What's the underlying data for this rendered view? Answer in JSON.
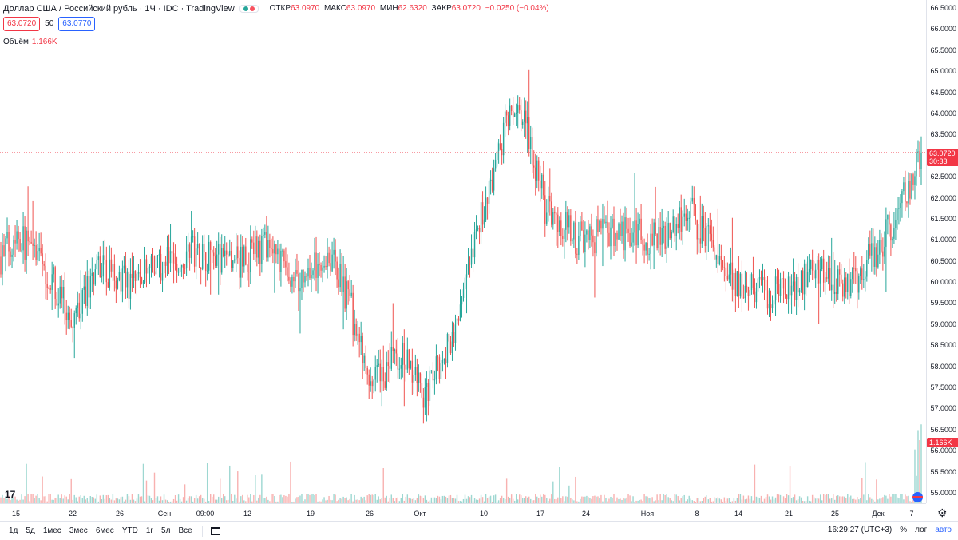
{
  "header": {
    "title": "Доллар США / Российский рубль · 1Ч · IDC · TradingView",
    "ohlc": {
      "open_label": "ОТКР",
      "open": "63.0970",
      "high_label": "МАКС",
      "high": "63.0970",
      "low_label": "МИН",
      "low": "62.6320",
      "close_label": "ЗАКР",
      "close": "63.0720",
      "change": "−0.0250 (−0.04%)"
    },
    "bid": "63.0720",
    "spread": "50",
    "ask": "63.0770",
    "volume_label": "Объём",
    "volume_value": "1.166K"
  },
  "price_label": {
    "price": "63.0720",
    "countdown": "30:33"
  },
  "volume_label_axis": "1.166K",
  "bottom_bar": {
    "ranges": [
      "1д",
      "5д",
      "1мес",
      "3мес",
      "6мес",
      "YTD",
      "1г",
      "5л",
      "Все"
    ],
    "time": "16:29:27 (UTC+3)",
    "percent": "%",
    "log": "лог",
    "auto": "авто"
  },
  "colors": {
    "up": "#26a69a",
    "down": "#ef5350",
    "current_price": "#f23645",
    "ask": "#2962ff"
  },
  "chart_data": {
    "type": "candlestick",
    "symbol": "USD/RUB",
    "interval": "1H",
    "y_ticks": [
      "66.5000",
      "66.0000",
      "65.5000",
      "65.0000",
      "64.5000",
      "64.0000",
      "63.5000",
      "63.0000",
      "62.5000",
      "62.0000",
      "61.5000",
      "61.0000",
      "60.5000",
      "60.0000",
      "59.5000",
      "59.0000",
      "58.5000",
      "58.0000",
      "57.5000",
      "57.0000",
      "56.5000",
      "56.0000",
      "55.5000",
      "55.0000"
    ],
    "ylim": [
      54.6,
      66.6
    ],
    "x_ticks": [
      "15",
      "22",
      "26",
      "Сен",
      "09:00",
      "12",
      "19",
      "26",
      "Окт",
      "10",
      "17",
      "24",
      "Ноя",
      "8",
      "14",
      "21",
      "25",
      "Дек",
      "7"
    ],
    "current_price": 63.072,
    "price_anchors": [
      {
        "i": 0,
        "p": 60.6
      },
      {
        "i": 10,
        "p": 61.2
      },
      {
        "i": 30,
        "p": 60.2
      },
      {
        "i": 45,
        "p": 59.0
      },
      {
        "i": 60,
        "p": 60.4
      },
      {
        "i": 80,
        "p": 60.0
      },
      {
        "i": 100,
        "p": 60.4
      },
      {
        "i": 120,
        "p": 60.8
      },
      {
        "i": 145,
        "p": 60.4
      },
      {
        "i": 165,
        "p": 60.8
      },
      {
        "i": 185,
        "p": 60.0
      },
      {
        "i": 205,
        "p": 60.7
      },
      {
        "i": 218,
        "p": 59.5
      },
      {
        "i": 230,
        "p": 57.5
      },
      {
        "i": 250,
        "p": 58.3
      },
      {
        "i": 265,
        "p": 57.3
      },
      {
        "i": 280,
        "p": 58.6
      },
      {
        "i": 290,
        "p": 59.8
      },
      {
        "i": 300,
        "p": 61.5
      },
      {
        "i": 310,
        "p": 63.0
      },
      {
        "i": 320,
        "p": 64.3
      },
      {
        "i": 328,
        "p": 63.8
      },
      {
        "i": 340,
        "p": 61.8
      },
      {
        "i": 360,
        "p": 61.0
      },
      {
        "i": 385,
        "p": 61.2
      },
      {
        "i": 410,
        "p": 61.0
      },
      {
        "i": 430,
        "p": 61.7
      },
      {
        "i": 450,
        "p": 60.5
      },
      {
        "i": 465,
        "p": 59.8
      },
      {
        "i": 490,
        "p": 59.7
      },
      {
        "i": 510,
        "p": 60.3
      },
      {
        "i": 530,
        "p": 59.9
      },
      {
        "i": 550,
        "p": 60.9
      },
      {
        "i": 562,
        "p": 61.8
      },
      {
        "i": 575,
        "p": 63.07
      }
    ],
    "volatility": 0.38,
    "bar_count": 576
  }
}
